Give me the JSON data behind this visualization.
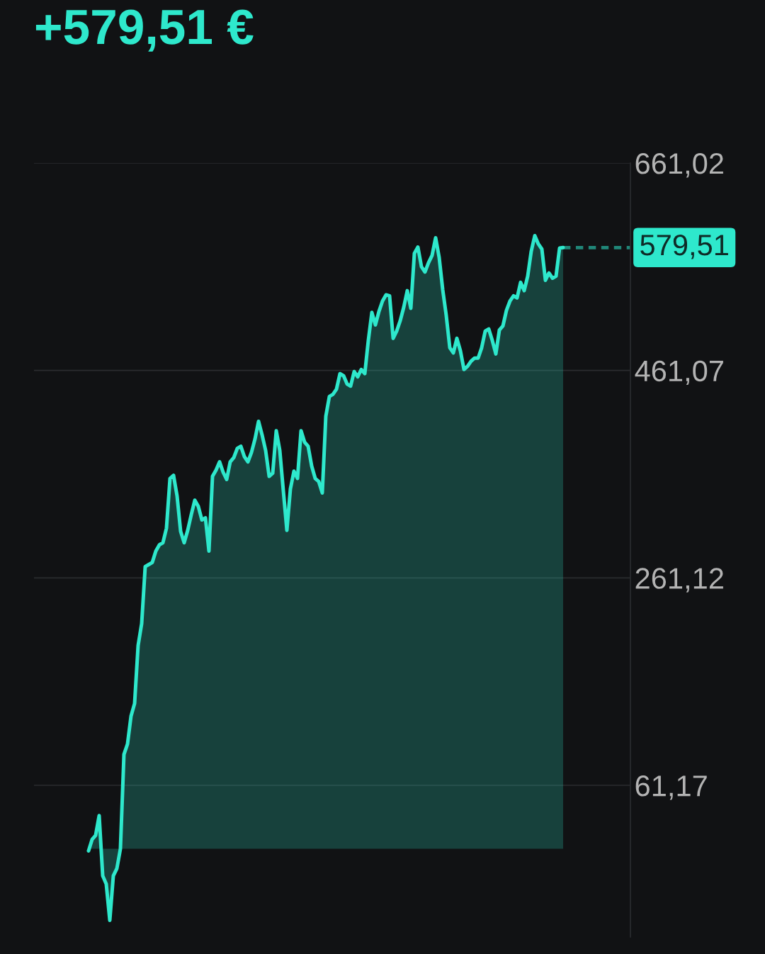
{
  "chart_data": {
    "type": "area",
    "title": "+579,51 €",
    "categories": [
      null,
      null,
      null,
      null,
      null,
      null,
      null,
      null,
      null,
      null,
      null,
      null,
      null,
      null,
      null,
      null,
      null,
      null,
      null,
      null,
      null,
      null,
      null,
      null,
      null,
      null,
      null,
      null,
      null,
      null,
      null,
      null,
      null,
      null,
      null,
      null,
      null,
      null,
      null,
      null,
      null,
      null,
      null,
      null,
      null,
      null,
      null,
      null,
      null,
      null,
      null,
      null,
      null,
      null,
      null,
      null,
      null,
      null,
      null,
      null,
      null,
      null,
      null,
      null,
      null,
      null,
      null,
      null,
      null,
      null,
      null,
      null,
      null,
      null,
      null,
      null,
      null,
      null,
      null,
      null,
      null,
      null,
      null,
      null,
      null,
      null,
      null,
      null,
      null,
      null,
      null,
      null,
      null,
      null,
      null,
      null,
      null,
      null,
      null,
      null,
      null,
      null,
      null,
      null,
      null,
      null,
      null,
      null,
      null,
      null,
      null,
      null,
      null,
      null,
      null,
      null,
      null,
      null,
      null,
      null,
      null,
      null,
      null,
      null,
      null,
      null,
      null,
      null,
      null,
      null,
      null,
      null,
      null,
      null,
      null
    ],
    "series": [
      {
        "color": "#2ee8cc",
        "values": [
          -2,
          9,
          13,
          32,
          -26,
          -34,
          -69,
          -26,
          -19,
          0,
          91,
          101,
          128,
          140,
          196,
          217,
          272,
          274,
          276,
          287,
          293,
          295,
          309,
          357,
          360,
          340,
          306,
          295,
          307,
          322,
          336,
          330,
          317,
          319,
          287,
          359,
          365,
          373,
          363,
          356,
          373,
          377,
          386,
          388,
          378,
          373,
          382,
          395,
          412,
          399,
          384,
          359,
          362,
          403,
          384,
          345,
          307,
          347,
          364,
          357,
          403,
          392,
          388,
          369,
          357,
          354,
          343,
          417,
          436,
          438,
          443,
          458,
          456,
          448,
          446,
          460,
          455,
          462,
          458,
          490,
          517,
          505,
          518,
          528,
          534,
          533,
          492,
          499,
          509,
          522,
          538,
          521,
          574,
          580,
          561,
          556,
          565,
          572,
          589,
          570,
          539,
          514,
          483,
          478,
          492,
          480,
          462,
          465,
          470,
          473,
          473,
          483,
          499,
          501,
          490,
          477,
          500,
          504,
          519,
          528,
          533,
          531,
          546,
          538,
          552,
          576,
          591,
          583,
          578,
          548,
          555,
          550,
          552,
          579,
          579.51
        ]
      }
    ],
    "ylim": [
      -85,
      661.02
    ],
    "yticks": [
      {
        "value": 61.17,
        "label": "61,17"
      },
      {
        "value": 261.12,
        "label": "261,12"
      },
      {
        "value": 461.07,
        "label": "461,07"
      },
      {
        "value": 661.02,
        "label": "661,02"
      }
    ],
    "grid": "y",
    "tick_labels": "y",
    "ref_lines": [
      {
        "axis": "y",
        "value": 579.51,
        "label": "579,51",
        "color": "#2ee8cc",
        "line_style": "dashed"
      }
    ]
  }
}
